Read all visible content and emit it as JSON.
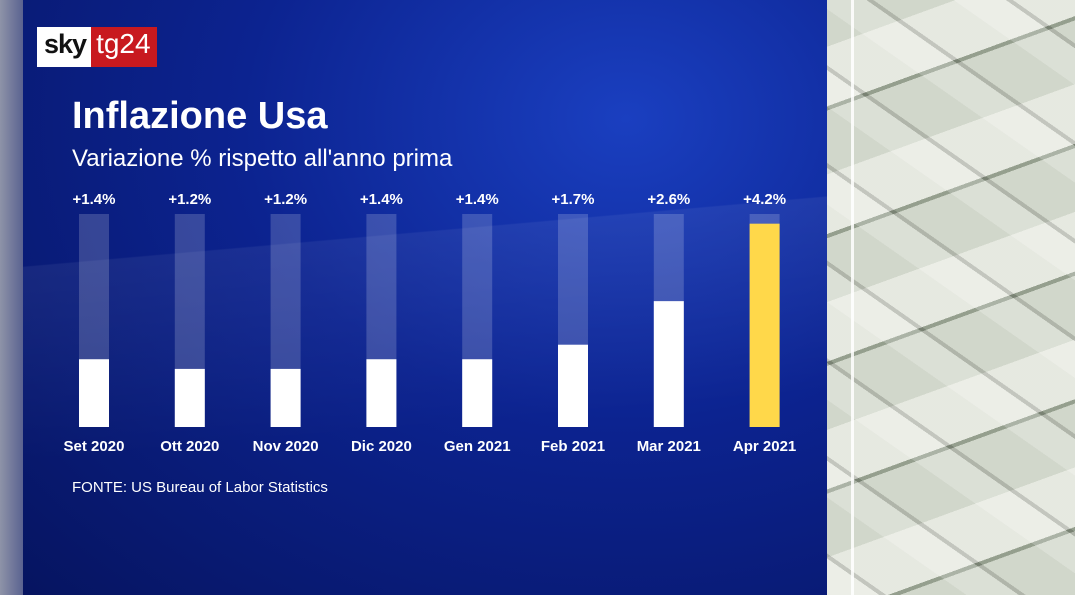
{
  "logo": {
    "left": "sky",
    "right": "tg24"
  },
  "colors": {
    "bar": "#ffffff",
    "highlight": "#ffd84a",
    "track": "rgba(255,255,255,0.18)"
  },
  "chart_data": {
    "type": "bar",
    "title": "Inflazione Usa",
    "subtitle": "Variazione % rispetto all'anno prima",
    "categories": [
      "Set 2020",
      "Ott 2020",
      "Nov 2020",
      "Dic 2020",
      "Gen 2021",
      "Feb 2021",
      "Mar 2021",
      "Apr 2021"
    ],
    "values": [
      1.4,
      1.2,
      1.2,
      1.4,
      1.4,
      1.7,
      2.6,
      4.2
    ],
    "labels": [
      "+1.4%",
      "+1.2%",
      "+1.2%",
      "+1.4%",
      "+1.4%",
      "+1.7%",
      "+2.6%",
      "+4.2%"
    ],
    "ylim": [
      0,
      4.4
    ],
    "highlight_index": 7,
    "source": "FONTE: US Bureau of Labor Statistics"
  }
}
